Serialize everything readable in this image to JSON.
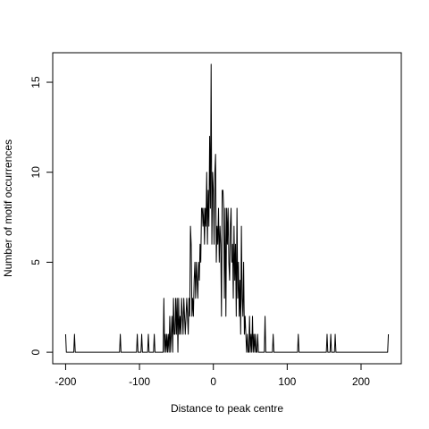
{
  "chart_data": {
    "type": "line",
    "xlabel": "Distance to peak centre",
    "ylabel": "Number of motif occurrences",
    "color": "#000000",
    "xlim": [
      -217.48,
      254.48
    ],
    "ylim": [
      -0.64,
      16.64
    ],
    "xticks": [
      -200,
      -100,
      0,
      100,
      200
    ],
    "yticks": [
      0,
      5,
      10,
      15
    ],
    "grid": false,
    "x": [
      -200,
      -199,
      -189,
      -188,
      -187,
      -127,
      -126,
      -125,
      -104,
      -103,
      -102,
      -98,
      -97,
      -96,
      -89,
      -88,
      -87,
      -81,
      -80,
      -79,
      -70,
      -69,
      -68,
      -67,
      -66,
      -65,
      -64,
      -63,
      -62,
      -61,
      -60,
      -59,
      -58,
      -57,
      -56,
      -55,
      -54,
      -53,
      -52,
      -51,
      -50,
      -49,
      -48,
      -47,
      -46,
      -45,
      -44,
      -43,
      -42,
      -41,
      -40,
      -39,
      -38,
      -37,
      -36,
      -35,
      -34,
      -33,
      -32,
      -31,
      -30,
      -29,
      -28,
      -27,
      -26,
      -25,
      -24,
      -23,
      -22,
      -21,
      -20,
      -19,
      -18,
      -17,
      -16,
      -15,
      -14,
      -13,
      -12,
      -11,
      -10,
      -9,
      -8,
      -7,
      -6,
      -5,
      -4,
      -3,
      -2,
      -1,
      0,
      1,
      2,
      3,
      4,
      5,
      6,
      7,
      8,
      9,
      10,
      11,
      12,
      13,
      14,
      15,
      16,
      17,
      18,
      19,
      20,
      21,
      22,
      23,
      24,
      25,
      26,
      27,
      28,
      29,
      30,
      31,
      32,
      33,
      34,
      35,
      36,
      37,
      38,
      39,
      40,
      41,
      42,
      43,
      44,
      45,
      46,
      47,
      48,
      49,
      50,
      51,
      52,
      53,
      54,
      55,
      56,
      57,
      58,
      59,
      60,
      61,
      62,
      69,
      70,
      71,
      80,
      81,
      82,
      114,
      115,
      116,
      153,
      154,
      155,
      158,
      159,
      160,
      164,
      165,
      166,
      236,
      237
    ],
    "values": [
      1,
      0,
      0,
      1,
      0,
      0,
      1,
      0,
      0,
      1,
      0,
      0,
      1,
      0,
      0,
      1,
      0,
      0,
      1,
      0,
      0,
      0,
      0,
      3,
      0,
      1,
      0,
      1,
      0,
      1,
      0,
      2,
      0,
      1,
      2,
      0,
      3,
      1,
      1,
      3,
      1,
      3,
      0,
      3,
      1,
      2,
      1,
      3,
      2,
      1,
      3,
      2,
      1,
      2,
      3,
      2,
      1,
      3,
      2,
      7,
      6,
      2,
      3,
      2,
      4,
      5,
      3,
      5,
      4,
      3,
      5,
      4,
      6,
      5,
      8,
      8,
      7,
      8,
      6,
      8,
      7,
      10,
      6,
      9,
      7,
      12,
      8,
      16,
      6,
      10,
      9,
      6,
      10,
      11,
      5,
      7,
      6,
      8,
      5,
      7,
      6,
      2,
      9,
      9,
      8,
      3,
      8,
      2,
      8,
      6,
      8,
      5,
      4,
      7,
      8,
      5,
      6,
      3,
      7,
      4,
      6,
      2,
      8,
      3,
      5,
      2,
      4,
      1,
      7,
      3,
      2,
      5,
      1,
      2,
      1,
      0,
      1,
      0,
      0,
      2,
      0,
      1,
      0,
      2,
      0,
      1,
      0,
      1,
      0,
      0,
      1,
      0,
      0,
      0,
      2,
      0,
      0,
      1,
      0,
      0,
      1,
      0,
      0,
      1,
      0,
      0,
      1,
      0,
      0,
      1,
      0,
      0,
      1
    ]
  }
}
